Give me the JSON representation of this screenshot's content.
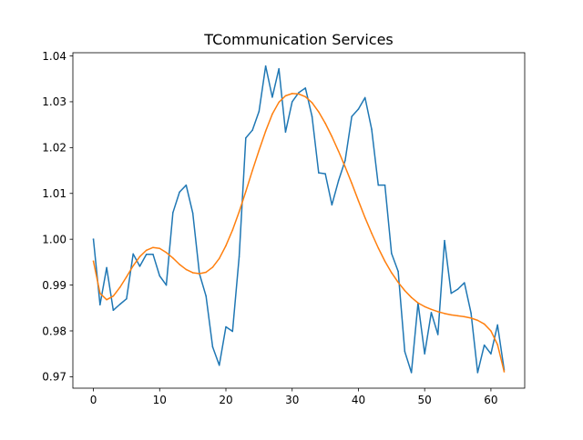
{
  "chart_data": {
    "type": "line",
    "title": "TCommunication Services",
    "xlabel": "",
    "ylabel": "",
    "xlim": [
      -3.1,
      65.1
    ],
    "ylim": [
      0.9675,
      1.0407
    ],
    "grid": false,
    "x_ticks": [
      0,
      10,
      20,
      30,
      40,
      50,
      60
    ],
    "x_tick_labels": [
      "0",
      "10",
      "20",
      "30",
      "40",
      "50",
      "60"
    ],
    "y_ticks": [
      0.97,
      0.98,
      0.99,
      1.0,
      1.01,
      1.02,
      1.03,
      1.04
    ],
    "y_tick_labels": [
      "0.97",
      "0.98",
      "0.99",
      "1.00",
      "1.01",
      "1.02",
      "1.03",
      "1.04"
    ],
    "x": [
      0,
      1,
      2,
      3,
      4,
      5,
      6,
      7,
      8,
      9,
      10,
      11,
      12,
      13,
      14,
      15,
      16,
      17,
      18,
      19,
      20,
      21,
      22,
      23,
      24,
      25,
      26,
      27,
      28,
      29,
      30,
      31,
      32,
      33,
      34,
      35,
      36,
      37,
      38,
      39,
      40,
      41,
      42,
      43,
      44,
      45,
      46,
      47,
      48,
      49,
      50,
      51,
      52,
      53,
      54,
      55,
      56,
      57,
      58,
      59,
      60,
      61,
      62
    ],
    "series": [
      {
        "color": "#1f77b4",
        "values": [
          1.0,
          0.9857,
          0.9938,
          0.9845,
          0.9858,
          0.987,
          0.9968,
          0.9941,
          0.9967,
          0.9967,
          0.992,
          0.99,
          1.0058,
          1.0103,
          1.0118,
          1.0057,
          0.9925,
          0.9876,
          0.9765,
          0.9725,
          0.9809,
          0.9799,
          0.9962,
          1.0221,
          1.0238,
          1.0279,
          1.0378,
          1.031,
          1.0372,
          1.0234,
          1.03,
          1.032,
          1.033,
          1.0268,
          1.0145,
          1.0143,
          1.0075,
          1.0128,
          1.0172,
          1.0268,
          1.0284,
          1.0309,
          1.024,
          1.0118,
          1.0118,
          0.9969,
          0.993,
          0.9755,
          0.9709,
          0.9861,
          0.975,
          0.984,
          0.9792,
          0.9997,
          0.9882,
          0.9891,
          0.9905,
          0.9839,
          0.9709,
          0.9769,
          0.975,
          0.9813,
          0.9715
        ]
      },
      {
        "color": "#ff7f0e",
        "values": [
          0.9952,
          0.9882,
          0.9868,
          0.9876,
          0.9895,
          0.9918,
          0.9942,
          0.9962,
          0.9976,
          0.9982,
          0.998,
          0.9971,
          0.9959,
          0.9945,
          0.9934,
          0.9927,
          0.9925,
          0.9928,
          0.9939,
          0.9958,
          0.9986,
          1.002,
          1.006,
          1.0104,
          1.015,
          1.0194,
          1.0236,
          1.0273,
          1.0299,
          1.0313,
          1.0318,
          1.0317,
          1.0311,
          1.0298,
          1.0278,
          1.0253,
          1.0224,
          1.0192,
          1.0158,
          1.0122,
          1.0084,
          1.0047,
          1.0013,
          0.9981,
          0.9952,
          0.9927,
          0.9906,
          0.9888,
          0.9873,
          0.9861,
          0.9853,
          0.9847,
          0.9842,
          0.9838,
          0.9835,
          0.9833,
          0.9831,
          0.9828,
          0.9823,
          0.9815,
          0.98,
          0.977,
          0.9711
        ]
      }
    ]
  }
}
